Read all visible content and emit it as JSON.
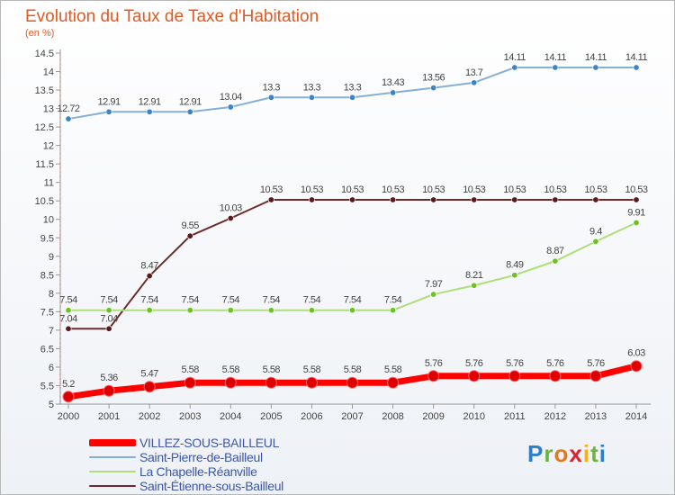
{
  "title": "Evolution du Taux de Taxe d'Habitation",
  "subtitle": "(en %)",
  "logo_text": "Proxiti",
  "chart_data": {
    "type": "line",
    "ylim": [
      5,
      14.5
    ],
    "y_ticks": [
      "5",
      "5.5",
      "6",
      "6.5",
      "7",
      "7.5",
      "8",
      "8.5",
      "9",
      "9.5",
      "10",
      "10.5",
      "11",
      "11.5",
      "12",
      "12.5",
      "13",
      "13.5",
      "14",
      "14.5"
    ],
    "categories": [
      "2000",
      "2001",
      "2002",
      "2003",
      "2004",
      "2005",
      "2006",
      "2007",
      "2008",
      "2009",
      "2010",
      "2011",
      "2012",
      "2013",
      "2014"
    ],
    "legend_position": "bottom-left",
    "grid": false,
    "series": [
      {
        "name": "VILLEZ-SOUS-BAILLEUL",
        "values": [
          5.2,
          5.36,
          5.47,
          5.58,
          5.58,
          5.58,
          5.58,
          5.58,
          5.58,
          5.76,
          5.76,
          5.76,
          5.76,
          5.76,
          6.03
        ],
        "labels": [
          "5.2",
          "5.36",
          "5.47",
          "5.58",
          "5.58",
          "5.58",
          "5.58",
          "5.58",
          "5.58",
          "5.76",
          "5.76",
          "5.76",
          "5.76",
          "5.76",
          "6.03"
        ],
        "color": "#ff0000",
        "marker_color": "#dd0000",
        "style": "thick"
      },
      {
        "name": "Saint-Pierre-de-Bailleul",
        "values": [
          12.72,
          12.91,
          12.91,
          12.91,
          13.04,
          13.3,
          13.3,
          13.3,
          13.43,
          13.56,
          13.7,
          14.11,
          14.11,
          14.11,
          14.11
        ],
        "labels": [
          "12.72",
          "12.91",
          "12.91",
          "12.91",
          "13.04",
          "13.3",
          "13.3",
          "13.3",
          "13.43",
          "13.56",
          "13.7",
          "14.11",
          "14.11",
          "14.11",
          "14.11"
        ],
        "color": "#86afd6",
        "marker_color": "#3c84c4",
        "style": "normal"
      },
      {
        "name": "La Chapelle-Réanville",
        "values": [
          7.54,
          7.54,
          7.54,
          7.54,
          7.54,
          7.54,
          7.54,
          7.54,
          7.54,
          7.97,
          8.21,
          8.49,
          8.87,
          9.4,
          9.91
        ],
        "labels": [
          "7.54",
          "7.54",
          "7.54",
          "7.54",
          "7.54",
          "7.54",
          "7.54",
          "7.54",
          "7.54",
          "7.97",
          "8.21",
          "8.49",
          "8.87",
          "9.4",
          "9.91"
        ],
        "color": "#aedf7a",
        "marker_color": "#6cc224",
        "style": "normal"
      },
      {
        "name": "Saint-Étienne-sous-Bailleul",
        "values": [
          7.04,
          7.04,
          8.47,
          9.55,
          10.03,
          10.53,
          10.53,
          10.53,
          10.53,
          10.53,
          10.53,
          10.53,
          10.53,
          10.53,
          10.53
        ],
        "labels": [
          "7.04",
          "7.04",
          "8.47",
          "9.55",
          "10.03",
          "10.53",
          "10.53",
          "10.53",
          "10.53",
          "10.53",
          "10.53",
          "10.53",
          "10.53",
          "10.53",
          "10.53"
        ],
        "color": "#6e2a2a",
        "marker_color": "#5a1a1a",
        "style": "normal"
      }
    ]
  }
}
